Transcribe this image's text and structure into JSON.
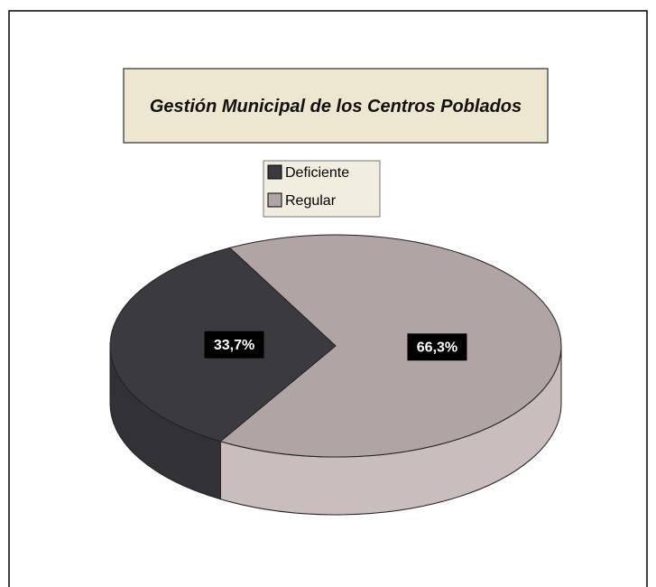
{
  "chart_data": {
    "type": "pie3d",
    "title": "Gestión Municipal de los Centros Poblados",
    "categories": [
      "Deficiente",
      "Regular"
    ],
    "values": [
      33.7,
      66.3
    ],
    "value_labels": [
      "33,7%",
      "66,3%"
    ],
    "colors": [
      "#3b3b3f",
      "#b0a4a4"
    ],
    "legend": "top"
  }
}
